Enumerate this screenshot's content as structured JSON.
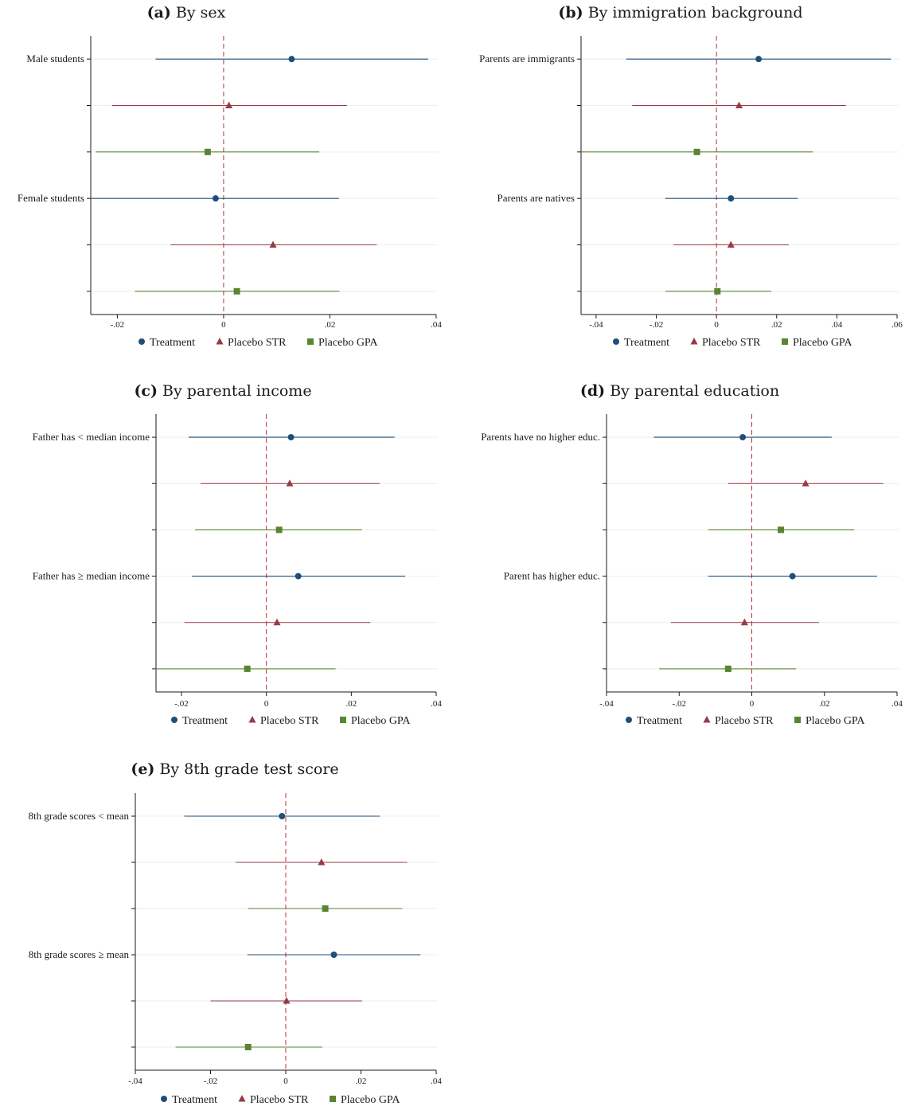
{
  "colors": {
    "treatment": "#1f4e79",
    "placebo_str": "#973a46",
    "placebo_gpa": "#5a8530",
    "zero_line": "#c0303a",
    "grid": "#eeeeee",
    "axis": "#1a1a1a"
  },
  "legend": [
    {
      "label": "Treatment",
      "marker": "circle",
      "color": "#1f4e79"
    },
    {
      "label": "Placebo STR",
      "marker": "triangle",
      "color": "#973a46"
    },
    {
      "label": "Placebo GPA",
      "marker": "square",
      "color": "#5a8530"
    }
  ],
  "chart_data": [
    {
      "id": "a",
      "type": "scatter",
      "letter": "(a)",
      "title": "By sex",
      "xlim": [
        -0.025,
        0.04
      ],
      "ticks": [
        -0.02,
        0,
        0.02,
        0.04
      ],
      "tick_labels": [
        "-.02",
        "0",
        ".02",
        ".04"
      ],
      "rows": [
        {
          "label": "Male students",
          "series": "Treatment",
          "est": 0.0128,
          "lo": -0.0128,
          "hi": 0.0385
        },
        {
          "label": "",
          "series": "Placebo STR",
          "est": 0.001,
          "lo": -0.021,
          "hi": 0.0232
        },
        {
          "label": "",
          "series": "Placebo GPA",
          "est": -0.003,
          "lo": -0.024,
          "hi": 0.018
        },
        {
          "label": "Female students",
          "series": "Treatment",
          "est": -0.0015,
          "lo": -0.025,
          "hi": 0.0217
        },
        {
          "label": "",
          "series": "Placebo STR",
          "est": 0.0093,
          "lo": -0.01,
          "hi": 0.0288
        },
        {
          "label": "",
          "series": "Placebo GPA",
          "est": 0.0025,
          "lo": -0.0167,
          "hi": 0.0218
        }
      ]
    },
    {
      "id": "b",
      "type": "scatter",
      "letter": "(b)",
      "title": "By immigration background",
      "xlim": [
        -0.045,
        0.06
      ],
      "ticks": [
        -0.04,
        -0.02,
        0,
        0.02,
        0.04,
        0.06
      ],
      "tick_labels": [
        "-.04",
        "-.02",
        "0",
        ".02",
        ".04",
        ".06"
      ],
      "rows": [
        {
          "label": "Parents are immigrants",
          "series": "Treatment",
          "est": 0.014,
          "lo": -0.03,
          "hi": 0.058
        },
        {
          "label": "",
          "series": "Placebo STR",
          "est": 0.0075,
          "lo": -0.028,
          "hi": 0.043
        },
        {
          "label": "",
          "series": "Placebo GPA",
          "est": -0.0065,
          "lo": -0.045,
          "hi": 0.032
        },
        {
          "label": "Parents are natives",
          "series": "Treatment",
          "est": 0.0048,
          "lo": -0.017,
          "hi": 0.027
        },
        {
          "label": "",
          "series": "Placebo STR",
          "est": 0.0048,
          "lo": -0.0143,
          "hi": 0.024
        },
        {
          "label": "",
          "series": "Placebo GPA",
          "est": 0.0003,
          "lo": -0.017,
          "hi": 0.0182
        }
      ]
    },
    {
      "id": "c",
      "type": "scatter",
      "letter": "(c)",
      "title": "By parental income",
      "xlim": [
        -0.026,
        0.04
      ],
      "ticks": [
        -0.02,
        0,
        0.02,
        0.04
      ],
      "tick_labels": [
        "-.02",
        "0",
        ".02",
        ".04"
      ],
      "rows": [
        {
          "label": "Father has < median income",
          "series": "Treatment",
          "est": 0.0058,
          "lo": -0.0183,
          "hi": 0.0302
        },
        {
          "label": "",
          "series": "Placebo STR",
          "est": 0.0055,
          "lo": -0.0155,
          "hi": 0.0267
        },
        {
          "label": "",
          "series": "Placebo GPA",
          "est": 0.003,
          "lo": -0.0168,
          "hi": 0.0225
        },
        {
          "label": "Father has ≥ median income",
          "series": "Treatment",
          "est": 0.0075,
          "lo": -0.0175,
          "hi": 0.0327
        },
        {
          "label": "",
          "series": "Placebo STR",
          "est": 0.0025,
          "lo": -0.0193,
          "hi": 0.0245
        },
        {
          "label": "",
          "series": "Placebo GPA",
          "est": -0.0045,
          "lo": -0.026,
          "hi": 0.0163
        }
      ]
    },
    {
      "id": "d",
      "type": "scatter",
      "letter": "(d)",
      "title": "By parental education",
      "xlim": [
        -0.04,
        0.04
      ],
      "ticks": [
        -0.04,
        -0.02,
        0,
        0.02,
        0.04
      ],
      "tick_labels": [
        "-.04",
        "-.02",
        "0",
        ".02",
        ".04"
      ],
      "rows": [
        {
          "label": "Parents have no higher educ.",
          "series": "Treatment",
          "est": -0.0025,
          "lo": -0.027,
          "hi": 0.022
        },
        {
          "label": "",
          "series": "Placebo STR",
          "est": 0.0148,
          "lo": -0.0065,
          "hi": 0.0362
        },
        {
          "label": "",
          "series": "Placebo GPA",
          "est": 0.008,
          "lo": -0.012,
          "hi": 0.0282
        },
        {
          "label": "Parent has higher educ.",
          "series": "Treatment",
          "est": 0.0112,
          "lo": -0.012,
          "hi": 0.0345
        },
        {
          "label": "",
          "series": "Placebo STR",
          "est": -0.002,
          "lo": -0.0223,
          "hi": 0.0185
        },
        {
          "label": "",
          "series": "Placebo GPA",
          "est": -0.0065,
          "lo": -0.0255,
          "hi": 0.0122
        }
      ]
    },
    {
      "id": "e",
      "type": "scatter",
      "letter": "(e)",
      "title": "By 8th grade test score",
      "xlim": [
        -0.04,
        0.04
      ],
      "ticks": [
        -0.04,
        -0.02,
        0,
        0.02,
        0.04
      ],
      "tick_labels": [
        "-.04",
        "-.02",
        "0",
        ".02",
        ".04"
      ],
      "rows": [
        {
          "label": "8th grade scores < mean",
          "series": "Treatment",
          "est": -0.001,
          "lo": -0.027,
          "hi": 0.025
        },
        {
          "label": "",
          "series": "Placebo STR",
          "est": 0.0095,
          "lo": -0.0133,
          "hi": 0.0323
        },
        {
          "label": "",
          "series": "Placebo GPA",
          "est": 0.0105,
          "lo": -0.01,
          "hi": 0.031
        },
        {
          "label": "8th grade scores ≥ mean",
          "series": "Treatment",
          "est": 0.0128,
          "lo": -0.0102,
          "hi": 0.0358
        },
        {
          "label": "",
          "series": "Placebo STR",
          "est": 0.0002,
          "lo": -0.02,
          "hi": 0.0203
        },
        {
          "label": "",
          "series": "Placebo GPA",
          "est": -0.01,
          "lo": -0.0293,
          "hi": 0.0097
        }
      ]
    }
  ]
}
